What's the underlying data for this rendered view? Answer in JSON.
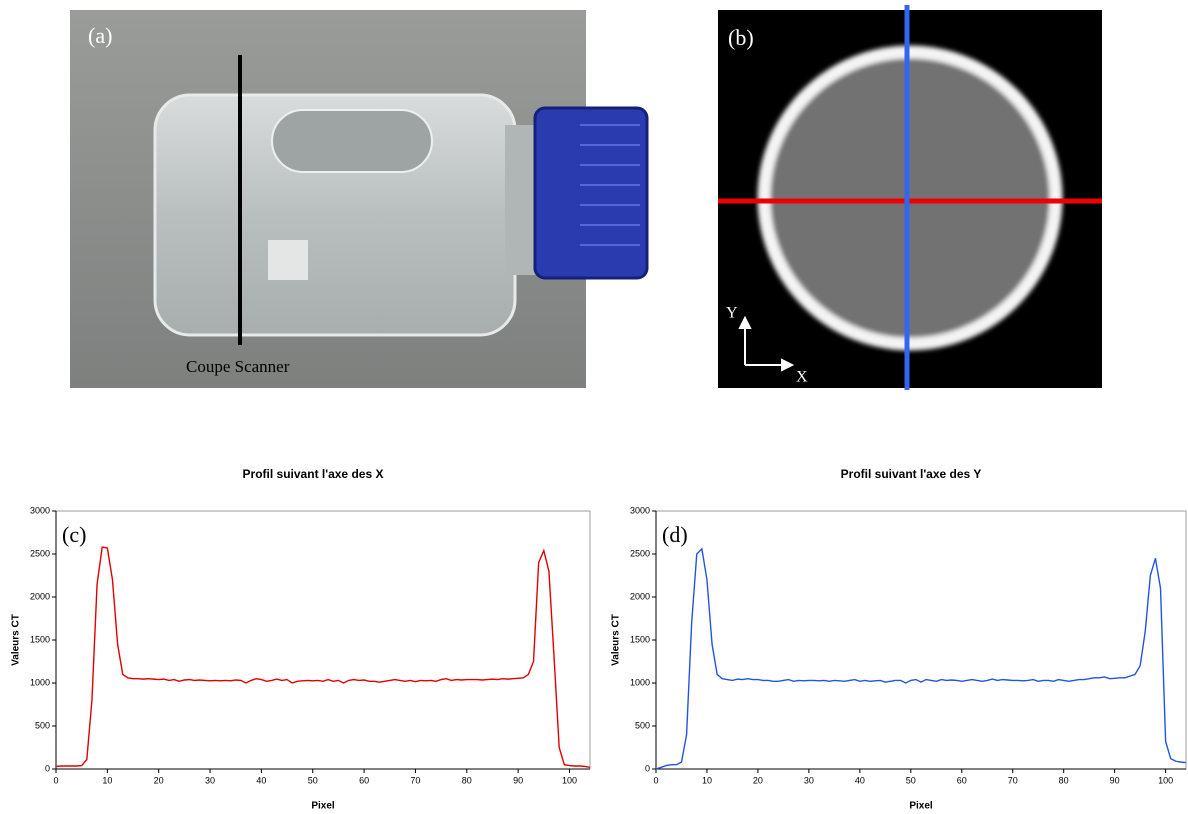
{
  "images": [
    {
      "label": "(a)",
      "caption": "Coupe Scanner"
    },
    {
      "label": "(b)",
      "axis_labels": [
        "Y",
        "X"
      ]
    }
  ],
  "chart_data": [
    {
      "type": "line",
      "panel": "(c)",
      "title": "Profil suivant l'axe des X",
      "x_label": "Pixel",
      "y_label": "Valeurs CT",
      "xlim": [
        0,
        104
      ],
      "xticks": [
        0,
        10,
        20,
        30,
        40,
        50,
        60,
        70,
        80,
        90,
        100
      ],
      "ylim": [
        0,
        3000
      ],
      "yticks": [
        0,
        500,
        1000,
        1500,
        2000,
        2500,
        3000
      ],
      "x": [
        0,
        1,
        2,
        3,
        4,
        5,
        6,
        7,
        8,
        9,
        10,
        11,
        12,
        13,
        14,
        15,
        16,
        17,
        18,
        19,
        20,
        21,
        22,
        23,
        24,
        25,
        26,
        27,
        28,
        29,
        30,
        31,
        32,
        33,
        34,
        35,
        36,
        37,
        38,
        39,
        40,
        41,
        42,
        43,
        44,
        45,
        46,
        47,
        48,
        49,
        50,
        51,
        52,
        53,
        54,
        55,
        56,
        57,
        58,
        59,
        60,
        61,
        62,
        63,
        64,
        65,
        66,
        67,
        68,
        69,
        70,
        71,
        72,
        73,
        74,
        75,
        76,
        77,
        78,
        79,
        80,
        81,
        82,
        83,
        84,
        85,
        86,
        87,
        88,
        89,
        90,
        91,
        92,
        93,
        94,
        95,
        96,
        97,
        98,
        99,
        100,
        101,
        102,
        103,
        104
      ],
      "series": [
        {
          "color": "#e00000",
          "values": [
            30,
            35,
            35,
            35,
            35,
            40,
            110,
            800,
            2150,
            2580,
            2570,
            2200,
            1450,
            1100,
            1060,
            1050,
            1050,
            1045,
            1050,
            1045,
            1040,
            1045,
            1030,
            1040,
            1020,
            1035,
            1040,
            1030,
            1035,
            1030,
            1025,
            1030,
            1025,
            1030,
            1025,
            1035,
            1030,
            1000,
            1030,
            1050,
            1040,
            1020,
            1030,
            1045,
            1030,
            1040,
            1000,
            1020,
            1025,
            1030,
            1025,
            1030,
            1020,
            1040,
            1020,
            1030,
            1000,
            1030,
            1040,
            1030,
            1035,
            1020,
            1020,
            1010,
            1020,
            1030,
            1040,
            1030,
            1020,
            1030,
            1015,
            1030,
            1025,
            1030,
            1020,
            1040,
            1050,
            1030,
            1040,
            1035,
            1040,
            1040,
            1040,
            1035,
            1040,
            1045,
            1040,
            1050,
            1045,
            1050,
            1055,
            1060,
            1100,
            1250,
            2400,
            2540,
            2300,
            1300,
            250,
            50,
            40,
            35,
            35,
            30,
            20
          ]
        }
      ]
    },
    {
      "type": "line",
      "panel": "(d)",
      "title": "Profil suivant l'axe des Y",
      "x_label": "Pixel",
      "y_label": "Valeurs CT",
      "xlim": [
        0,
        104
      ],
      "xticks": [
        0,
        10,
        20,
        30,
        40,
        50,
        60,
        70,
        80,
        90,
        100
      ],
      "ylim": [
        0,
        3000
      ],
      "yticks": [
        0,
        500,
        1000,
        1500,
        2000,
        2500,
        3000
      ],
      "x": [
        0,
        1,
        2,
        3,
        4,
        5,
        6,
        7,
        8,
        9,
        10,
        11,
        12,
        13,
        14,
        15,
        16,
        17,
        18,
        19,
        20,
        21,
        22,
        23,
        24,
        25,
        26,
        27,
        28,
        29,
        30,
        31,
        32,
        33,
        34,
        35,
        36,
        37,
        38,
        39,
        40,
        41,
        42,
        43,
        44,
        45,
        46,
        47,
        48,
        49,
        50,
        51,
        52,
        53,
        54,
        55,
        56,
        57,
        58,
        59,
        60,
        61,
        62,
        63,
        64,
        65,
        66,
        67,
        68,
        69,
        70,
        71,
        72,
        73,
        74,
        75,
        76,
        77,
        78,
        79,
        80,
        81,
        82,
        83,
        84,
        85,
        86,
        87,
        88,
        89,
        90,
        91,
        92,
        93,
        94,
        95,
        96,
        97,
        98,
        99,
        100,
        101,
        102,
        103,
        104
      ],
      "series": [
        {
          "color": "#2255dd",
          "values": [
            0,
            20,
            40,
            50,
            50,
            80,
            400,
            1700,
            2500,
            2560,
            2200,
            1450,
            1100,
            1050,
            1040,
            1030,
            1045,
            1040,
            1050,
            1040,
            1040,
            1030,
            1030,
            1020,
            1020,
            1030,
            1040,
            1020,
            1030,
            1025,
            1030,
            1030,
            1025,
            1030,
            1020,
            1030,
            1025,
            1020,
            1030,
            1040,
            1020,
            1030,
            1020,
            1025,
            1030,
            1010,
            1020,
            1030,
            1030,
            1000,
            1030,
            1040,
            1010,
            1040,
            1030,
            1020,
            1040,
            1030,
            1035,
            1030,
            1020,
            1030,
            1040,
            1030,
            1020,
            1030,
            1045,
            1030,
            1040,
            1035,
            1030,
            1030,
            1025,
            1030,
            1040,
            1020,
            1030,
            1030,
            1020,
            1040,
            1030,
            1020,
            1030,
            1040,
            1040,
            1050,
            1060,
            1060,
            1070,
            1050,
            1055,
            1060,
            1060,
            1080,
            1100,
            1200,
            1600,
            2250,
            2450,
            2100,
            320,
            120,
            90,
            80,
            75
          ]
        }
      ]
    }
  ]
}
